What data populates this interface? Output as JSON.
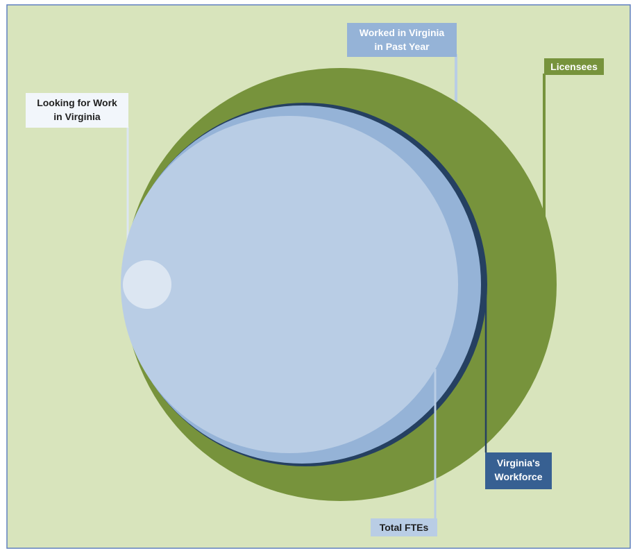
{
  "colors": {
    "background": "#d8e4bc",
    "frame": "#5f7fbf",
    "licensees": "#77933c",
    "workforce": "#254061",
    "worked_past_year": "#95b3d7",
    "total_ftes": "#b9cde5",
    "looking_for_work": "#dce6f2"
  },
  "labels": {
    "worked": {
      "line1": "Worked in Virginia",
      "line2": "in Past Year"
    },
    "licensees": {
      "line1": "Licensees"
    },
    "looking": {
      "line1": "Looking for Work",
      "line2": "in Virginia"
    },
    "workforce": {
      "line1": "Virginia's",
      "line2": "Workforce"
    },
    "total": {
      "line1": "Total FTEs"
    }
  }
}
